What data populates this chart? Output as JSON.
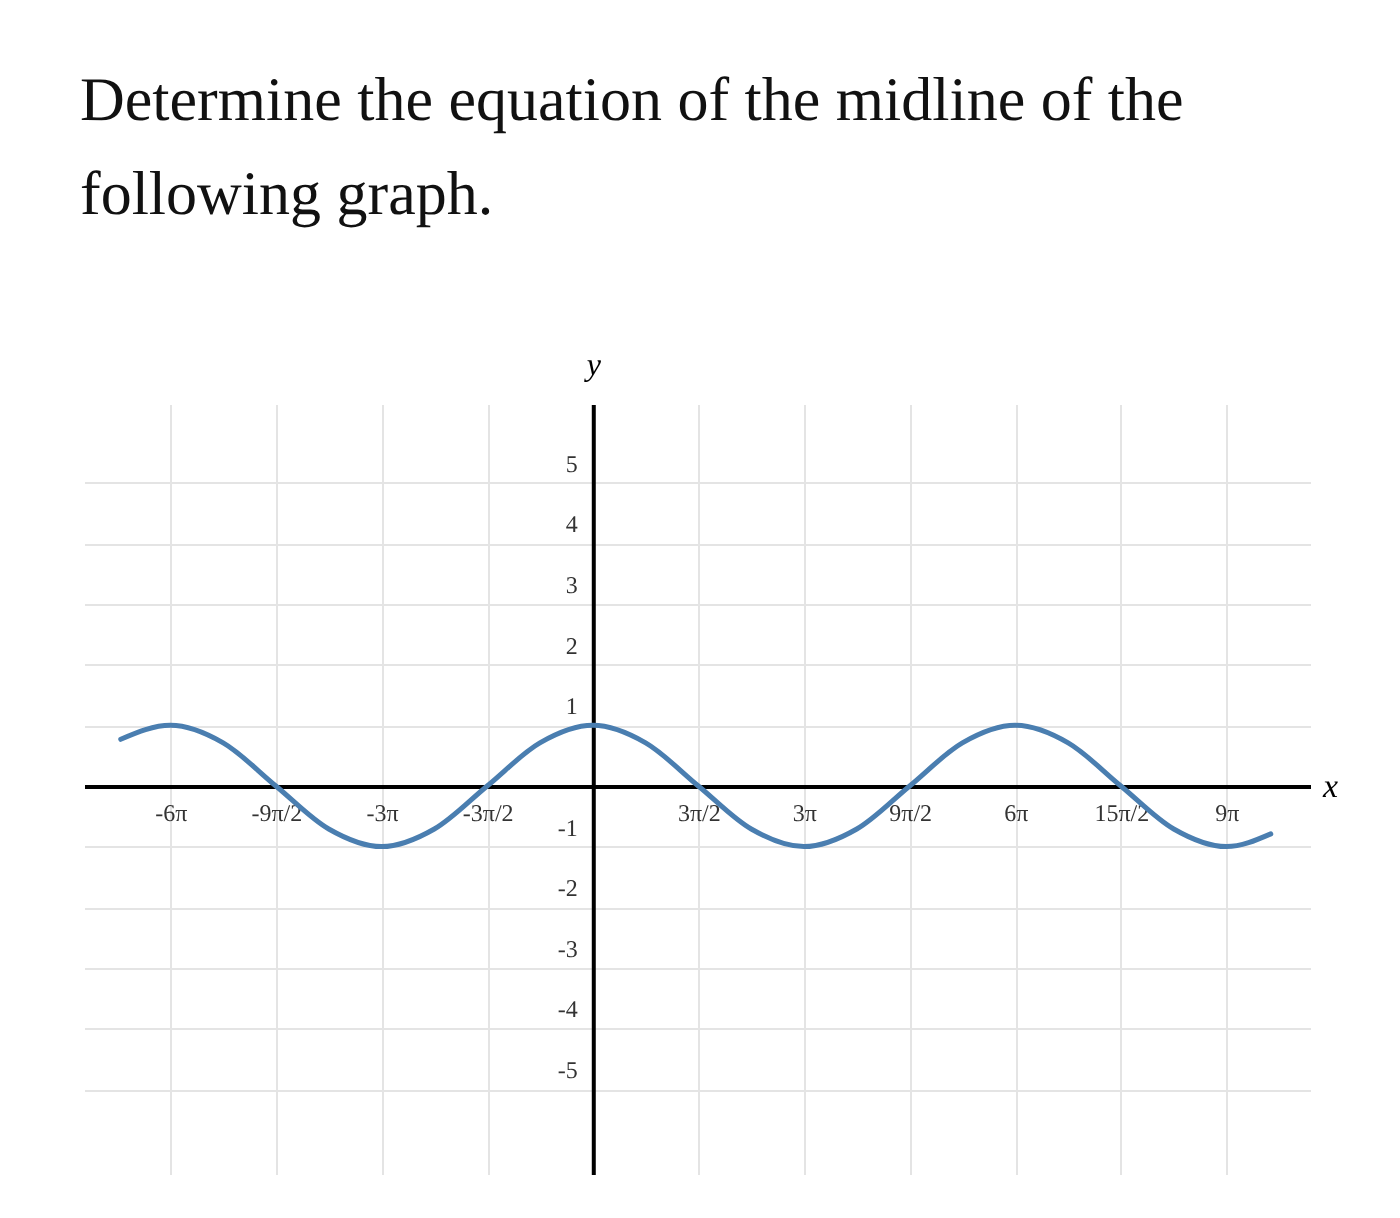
{
  "chart_data": {
    "type": "line",
    "title": "Determine the equation of the midline of the following graph.",
    "xlabel": "x",
    "ylabel": "y",
    "x": [
      -21.06,
      -18.85,
      -16.49,
      -14.14,
      -11.78,
      -9.42,
      -7.07,
      -4.71,
      -2.36,
      0,
      2.36,
      4.71,
      7.07,
      9.42,
      11.78,
      14.14,
      16.49,
      18.85,
      21.21,
      23.56,
      25.92,
      28.27,
      30.25
    ],
    "series": [
      {
        "color": "#4a7eb0",
        "values": [
          0.77,
          1,
          0.71,
          0,
          -0.71,
          -1,
          -0.71,
          0,
          0.71,
          1,
          0.71,
          0,
          -0.71,
          -1,
          -0.71,
          0,
          0.71,
          1,
          0.71,
          0,
          -0.71,
          -1,
          -0.79
        ]
      }
    ],
    "xlim": [
      -22.7,
      32.0
    ],
    "ylim": [
      -6.4,
      6.3
    ],
    "xticks": [
      {
        "value": -18.85,
        "label": "-6π"
      },
      {
        "value": -14.14,
        "label": "-9π/2"
      },
      {
        "value": -9.42,
        "label": "-3π"
      },
      {
        "value": -4.71,
        "label": "-3π/2"
      },
      {
        "value": 0,
        "label": null
      },
      {
        "value": 4.71,
        "label": "3π/2"
      },
      {
        "value": 9.42,
        "label": "3π"
      },
      {
        "value": 14.14,
        "label": "9π/2"
      },
      {
        "value": 18.85,
        "label": "6π"
      },
      {
        "value": 23.56,
        "label": "15π/2"
      },
      {
        "value": 28.27,
        "label": "9π"
      }
    ],
    "yticks": [
      -5,
      -4,
      -3,
      -2,
      -1,
      {
        "value": 0,
        "label": null
      },
      1,
      2,
      3,
      4,
      5
    ],
    "grid": true
  }
}
